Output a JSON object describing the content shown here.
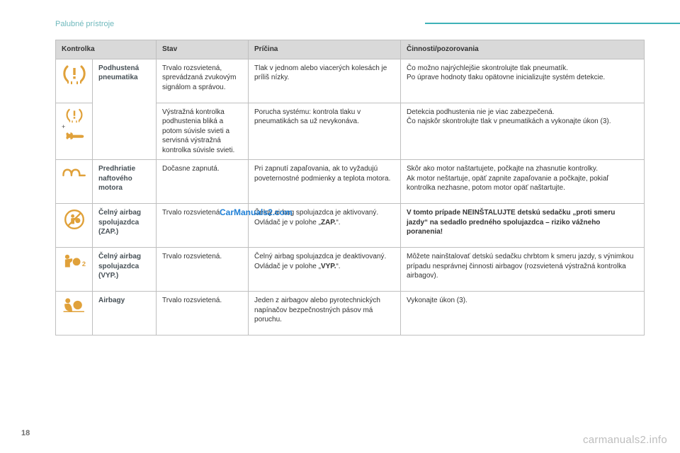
{
  "section_title": "Palubné prístroje",
  "page_number": "18",
  "watermark_center": "CarManuals2.com",
  "watermark_footer": "carmanuals2.info",
  "colors": {
    "icon_amber": "#e0a13a",
    "icon_amber_dark": "#c88a2a",
    "header_bg": "#d9d9d9",
    "border": "#bfbfbf",
    "accent": "#3eb2b8"
  },
  "table": {
    "headers": {
      "kontrolka": "Kontrolka",
      "stav": "Stav",
      "pricina": "Príčina",
      "cinnosti": "Činnosti/pozorovania"
    },
    "rows": [
      {
        "icon": "tire-pressure",
        "name": "Podhustená pneumatika",
        "stav": "Trvalo rozsvietená, sprevádzaná zvukovým signálom a správou.",
        "pricina": "Tlak v jednom alebo viacerých kolesách je príliš nízky.",
        "cinnosti": "Čo možno najrýchlejšie skontrolujte tlak pneumatík.\nPo úprave hodnoty tlaku opätovne inicializujte systém detekcie."
      },
      {
        "icon": "tire-pressure-plus-wrench",
        "name_merge_up": true,
        "stav": "Výstražná kontrolka podhustenia bliká a potom súvisle svieti a servisná výstražná kontrolka súvisle svieti.",
        "pricina": "Porucha systému: kontrola tlaku v pneumatikách sa už nevykonáva.",
        "cinnosti": "Detekcia podhustenia nie je viac zabezpečená.\nČo najskôr skontrolujte tlak v pneumatikách a vykonajte úkon (3)."
      },
      {
        "icon": "glowplug",
        "name": "Predhriatie naftového motora",
        "stav": "Dočasne zapnutá.",
        "pricina": "Pri zapnutí zapaľovania, ak to vyžadujú poveternostné podmienky a teplota motora.",
        "cinnosti": "Skôr ako motor naštartujete, počkajte na zhasnutie kontrolky.\nAk motor neštartuje, opäť zapnite zapaľovanie a počkajte, pokiaľ kontrolka nezhasne, potom motor opäť naštartujte."
      },
      {
        "icon": "airbag-off",
        "name": "Čelný airbag spolujazdca (ZAP.)",
        "stav": "Trvalo rozsvietená.",
        "pricina_pre": "Čelný airbag spolujazdca je aktivovaný.\nOvládač je v polohe „",
        "pricina_bold": "ZAP.",
        "pricina_post": "“.",
        "cinnosti_bold": "V tomto prípade NEINŠTALUJTE detskú sedačku „proti smeru jazdy“ na sedadlo predného spolujazdca – riziko vážneho poranenia!"
      },
      {
        "icon": "airbag-on",
        "name": "Čelný airbag spolujazdca (VYP.)",
        "stav": "Trvalo rozsvietená.",
        "pricina_pre": "Čelný airbag spolujazdca je deaktivovaný.\nOvládač je v polohe „",
        "pricina_bold": "VYP.",
        "pricina_post": "“.",
        "cinnosti": "Môžete nainštalovať detskú sedačku chrbtom k smeru jazdy, s výnimkou prípadu nesprávnej činnosti airbagov (rozsvietená výstražná kontrolka airbagov)."
      },
      {
        "icon": "airbag",
        "name": "Airbagy",
        "stav": "Trvalo rozsvietená.",
        "pricina": "Jeden z airbagov alebo pyrotechnických napínačov bezpečnostných pásov má poruchu.",
        "cinnosti": "Vykonajte úkon (3)."
      }
    ]
  }
}
